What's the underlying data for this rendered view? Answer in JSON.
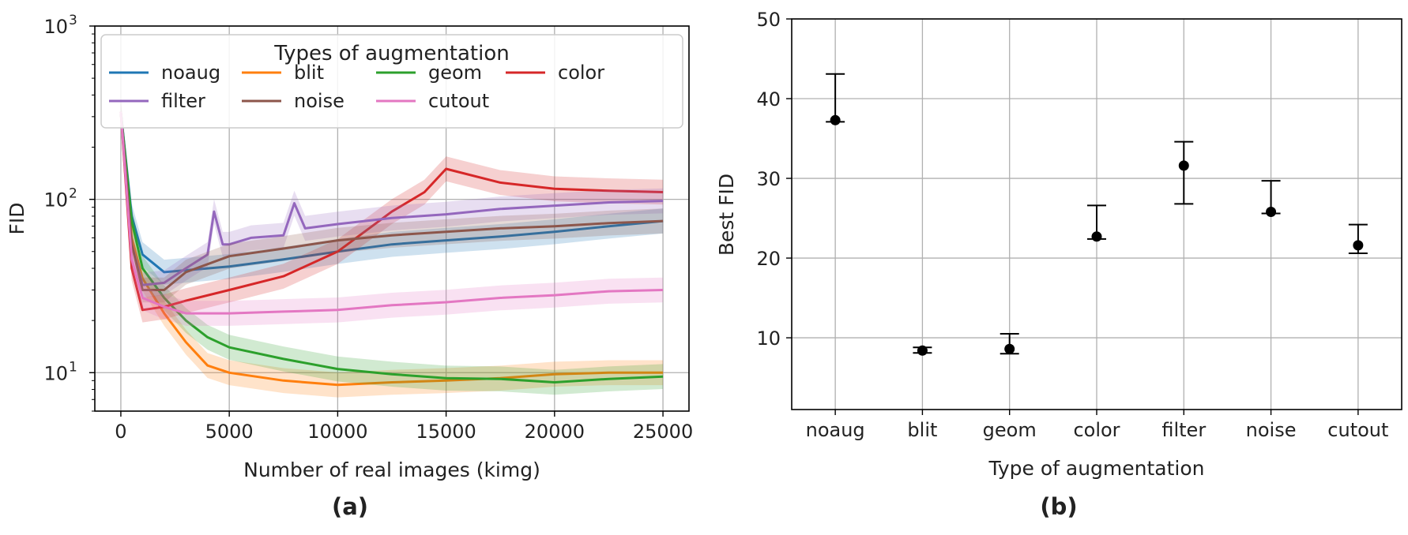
{
  "panel_labels": {
    "a": "(a)",
    "b": "(b)"
  },
  "colors": {
    "noaug": "#1f77b4",
    "blit": "#ff7f0e",
    "geom": "#2ca02c",
    "color": "#d62728",
    "filter": "#9467bd",
    "noise": "#8c564b",
    "cutout": "#e377c2",
    "errorbar": "#000000"
  },
  "chart_data": [
    {
      "type": "line",
      "panel": "(a)",
      "xlabel": "Number of real images (kimg)",
      "ylabel": "FID",
      "xlim": [
        -1200,
        26200
      ],
      "ylim": [
        6,
        1000
      ],
      "yscale": "log",
      "x_ticks": [
        0,
        5000,
        10000,
        15000,
        20000,
        25000
      ],
      "y_ticks": [
        {
          "value": 10,
          "base": "10",
          "exp": "1"
        },
        {
          "value": 100,
          "base": "10",
          "exp": "2"
        },
        {
          "value": 1000,
          "base": "10",
          "exp": "3"
        }
      ],
      "grid": true,
      "legend": {
        "title": "Types of augmentation",
        "placement": "top",
        "columns": 4,
        "order": [
          "noaug",
          "blit",
          "geom",
          "color",
          "filter",
          "noise",
          "cutout"
        ]
      },
      "series": [
        {
          "name": "noaug",
          "color": "#1f77b4",
          "points": [
            [
              0,
              320
            ],
            [
              500,
              80
            ],
            [
              1000,
              48
            ],
            [
              2000,
              38
            ],
            [
              3000,
              39
            ],
            [
              5000,
              41
            ],
            [
              7500,
              45
            ],
            [
              10000,
              50
            ],
            [
              12500,
              55
            ],
            [
              15000,
              58
            ],
            [
              17500,
              61
            ],
            [
              20000,
              65
            ],
            [
              22500,
              70
            ],
            [
              25000,
              75
            ]
          ]
        },
        {
          "name": "blit",
          "color": "#ff7f0e",
          "points": [
            [
              0,
              320
            ],
            [
              500,
              60
            ],
            [
              1000,
              35
            ],
            [
              2000,
              22
            ],
            [
              3000,
              15
            ],
            [
              4000,
              11
            ],
            [
              5000,
              10
            ],
            [
              7500,
              9
            ],
            [
              10000,
              8.5
            ],
            [
              12500,
              8.8
            ],
            [
              15000,
              9
            ],
            [
              17500,
              9.3
            ],
            [
              20000,
              9.8
            ],
            [
              22500,
              10
            ],
            [
              25000,
              10
            ]
          ]
        },
        {
          "name": "geom",
          "color": "#2ca02c",
          "points": [
            [
              0,
              320
            ],
            [
              500,
              75
            ],
            [
              1000,
              40
            ],
            [
              2000,
              27
            ],
            [
              3000,
              20
            ],
            [
              4000,
              16
            ],
            [
              5000,
              14
            ],
            [
              7500,
              12
            ],
            [
              10000,
              10.5
            ],
            [
              12500,
              9.8
            ],
            [
              15000,
              9.3
            ],
            [
              17500,
              9.2
            ],
            [
              20000,
              8.8
            ],
            [
              22500,
              9.2
            ],
            [
              25000,
              9.5
            ]
          ]
        },
        {
          "name": "color",
          "color": "#d62728",
          "points": [
            [
              0,
              320
            ],
            [
              500,
              40
            ],
            [
              1000,
              23
            ],
            [
              2000,
              24
            ],
            [
              3000,
              26
            ],
            [
              5000,
              30
            ],
            [
              7500,
              36
            ],
            [
              10000,
              50
            ],
            [
              12500,
              85
            ],
            [
              14000,
              110
            ],
            [
              15000,
              150
            ],
            [
              17500,
              125
            ],
            [
              20000,
              115
            ],
            [
              22500,
              112
            ],
            [
              25000,
              110
            ]
          ]
        },
        {
          "name": "filter",
          "color": "#9467bd",
          "points": [
            [
              0,
              320
            ],
            [
              500,
              55
            ],
            [
              1000,
              32
            ],
            [
              2000,
              33
            ],
            [
              3000,
              40
            ],
            [
              4000,
              48
            ],
            [
              4300,
              85
            ],
            [
              4700,
              55
            ],
            [
              5000,
              55
            ],
            [
              6000,
              60
            ],
            [
              7500,
              62
            ],
            [
              8000,
              95
            ],
            [
              8500,
              68
            ],
            [
              10000,
              72
            ],
            [
              12500,
              78
            ],
            [
              15000,
              82
            ],
            [
              17500,
              88
            ],
            [
              20000,
              92
            ],
            [
              22500,
              96
            ],
            [
              25000,
              98
            ]
          ]
        },
        {
          "name": "noise",
          "color": "#8c564b",
          "points": [
            [
              0,
              320
            ],
            [
              500,
              55
            ],
            [
              1000,
              30
            ],
            [
              2000,
              30
            ],
            [
              3000,
              38
            ],
            [
              5000,
              47
            ],
            [
              7500,
              52
            ],
            [
              10000,
              58
            ],
            [
              12500,
              62
            ],
            [
              15000,
              65
            ],
            [
              17500,
              68
            ],
            [
              20000,
              70
            ],
            [
              22500,
              73
            ],
            [
              25000,
              75
            ]
          ]
        },
        {
          "name": "cutout",
          "color": "#e377c2",
          "points": [
            [
              0,
              320
            ],
            [
              500,
              45
            ],
            [
              1000,
              27
            ],
            [
              2000,
              24
            ],
            [
              3000,
              22
            ],
            [
              5000,
              22
            ],
            [
              7500,
              22.5
            ],
            [
              10000,
              23
            ],
            [
              12500,
              24.5
            ],
            [
              15000,
              25.5
            ],
            [
              17500,
              27
            ],
            [
              20000,
              28
            ],
            [
              22500,
              29.5
            ],
            [
              25000,
              30
            ]
          ]
        }
      ]
    },
    {
      "type": "scatter",
      "panel": "(b)",
      "xlabel": "Type of augmentation",
      "ylabel": "Best FID",
      "ylim": [
        1,
        50
      ],
      "y_ticks": [
        10,
        20,
        30,
        40,
        50
      ],
      "grid": true,
      "categories": [
        "noaug",
        "blit",
        "geom",
        "color",
        "filter",
        "noise",
        "cutout"
      ],
      "values": [
        37.3,
        8.4,
        8.6,
        22.7,
        31.6,
        25.8,
        21.6
      ],
      "errorbar_low": [
        37.1,
        8.1,
        8.0,
        22.4,
        26.8,
        25.6,
        20.6
      ],
      "errorbar_high": [
        43.1,
        8.8,
        10.5,
        26.6,
        34.6,
        29.7,
        24.2
      ]
    }
  ]
}
